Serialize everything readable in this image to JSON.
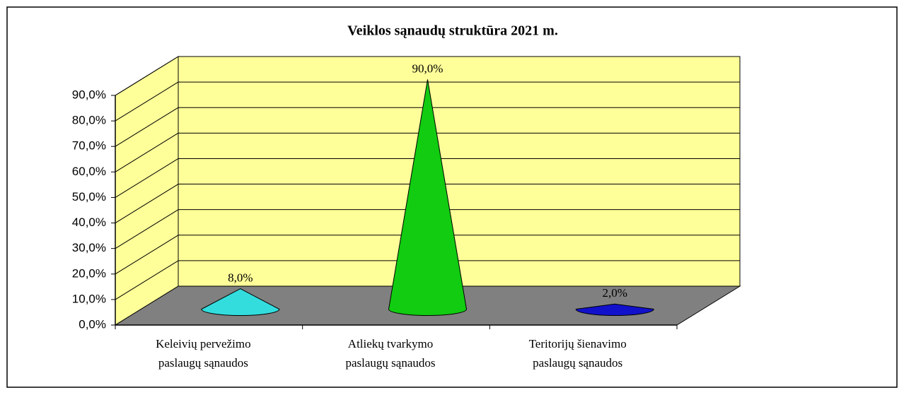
{
  "chart_data": {
    "type": "cone",
    "title": "Veiklos sąnaudų struktūra 2021 m.",
    "categories": [
      [
        "Keleivių pervežimo",
        "paslaugų sąnaudos"
      ],
      [
        "Atliekų tvarkymo",
        "paslaugų sąnaudos"
      ],
      [
        "Teritorijų šienavimo",
        "paslaugų sąnaudos"
      ]
    ],
    "values": [
      8,
      90,
      2
    ],
    "value_labels": [
      "8,0%",
      "90,0%",
      "2,0%"
    ],
    "colors": [
      "#33dddd",
      "#11cc11",
      "#1111cc"
    ],
    "ylim": [
      0,
      90
    ],
    "yticks": [
      {
        "value": 0,
        "label": "0,0%"
      },
      {
        "value": 10,
        "label": "10,0%"
      },
      {
        "value": 20,
        "label": "20,0%"
      },
      {
        "value": 30,
        "label": "30,0%"
      },
      {
        "value": 40,
        "label": "40,0%"
      },
      {
        "value": 50,
        "label": "50,0%"
      },
      {
        "value": 60,
        "label": "60,0%"
      },
      {
        "value": 70,
        "label": "70,0%"
      },
      {
        "value": 80,
        "label": "80,0%"
      },
      {
        "value": 90,
        "label": "90,0%"
      }
    ],
    "grid": true
  }
}
